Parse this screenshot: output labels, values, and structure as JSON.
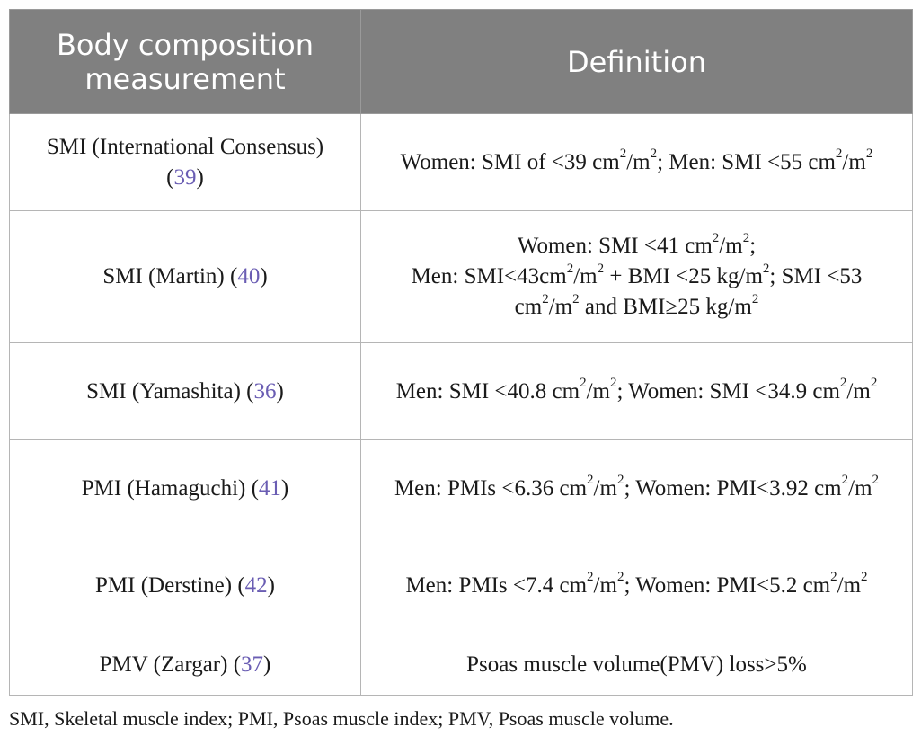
{
  "table": {
    "headers": [
      "Body composition measurement",
      "Definition"
    ],
    "rows": [
      {
        "name": "SMI (International Consensus)",
        "ref": "39",
        "definition": "Women: SMI of <39 cm²/m²; Men: SMI <55 cm²/m²"
      },
      {
        "name": "SMI (Martin)",
        "ref": "40",
        "definition_line1": "Women: SMI <41 cm²/m²;",
        "definition_line2": "Men: SMI<43cm²/m² + BMI <25 kg/m²; SMI <53 cm²/m² and BMI≥25 kg/m²"
      },
      {
        "name": "SMI (Yamashita)",
        "ref": "36",
        "definition": "Men: SMI <40.8 cm²/m²; Women: SMI <34.9 cm²/m²"
      },
      {
        "name": "PMI (Hamaguchi)",
        "ref": "41",
        "definition": "Men: PMIs <6.36 cm²/m²; Women: PMI<3.92 cm²/m²"
      },
      {
        "name": "PMI (Derstine)",
        "ref": "42",
        "definition": "Men: PMIs <7.4 cm²/m²; Women: PMI<5.2 cm²/m²"
      },
      {
        "name": "PMV (Zargar)",
        "ref": "37",
        "definition": "Psoas muscle volume(PMV) loss>5%"
      }
    ]
  },
  "footnote": "SMI, Skeletal muscle index; PMI, Psoas muscle index; PMV, Psoas muscle volume.",
  "colors": {
    "header_bg": "#808080",
    "header_text": "#ffffff",
    "reference_link": "#6a5db3",
    "border": "#b5b5b5"
  }
}
